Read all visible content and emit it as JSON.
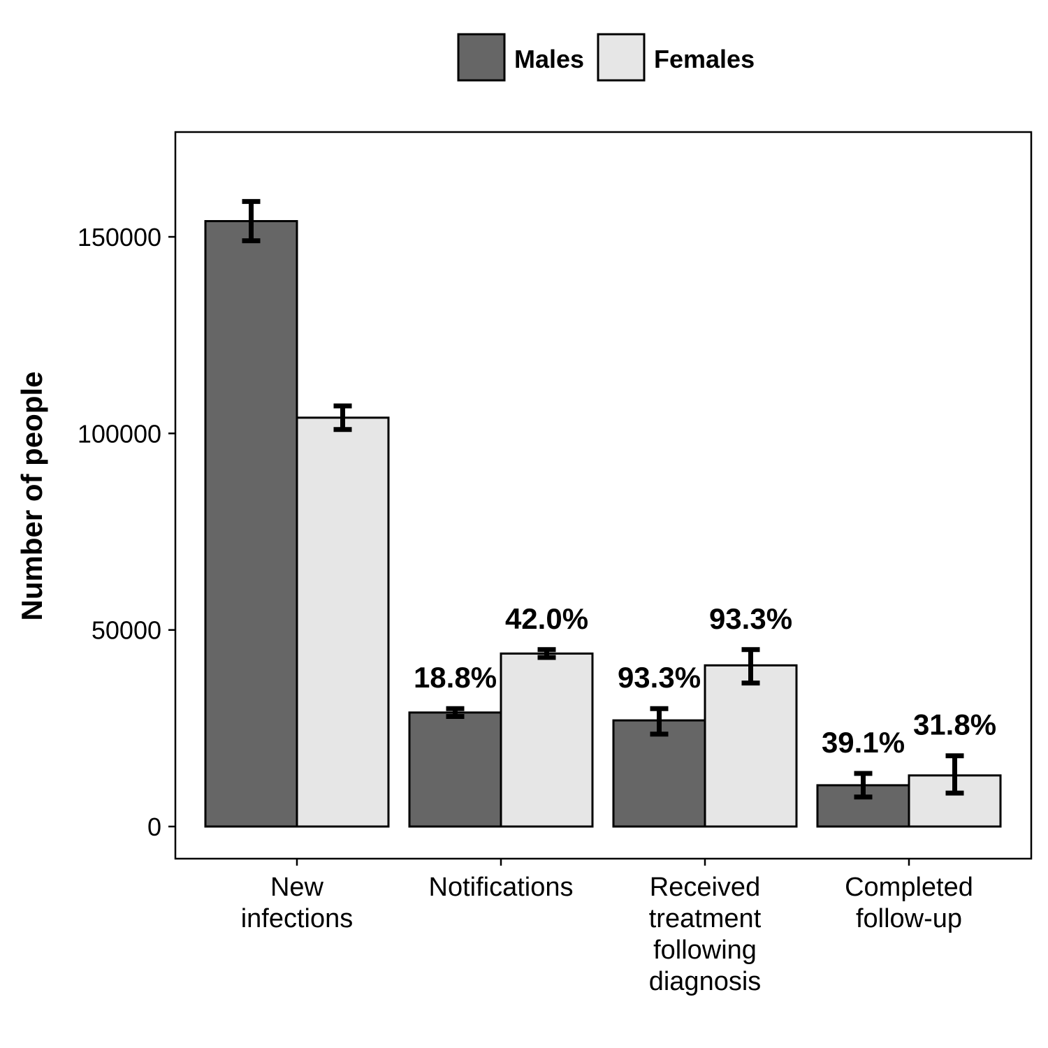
{
  "chart_data": {
    "type": "bar",
    "categories": [
      [
        "New",
        "infections"
      ],
      [
        "Notifications"
      ],
      [
        "Received",
        "treatment",
        "following",
        "diagnosis"
      ],
      [
        "Completed",
        "follow-up"
      ]
    ],
    "ylabel": "Number of people",
    "xlabel": "",
    "ylim": [
      -8000,
      176000
    ],
    "yticks": [
      0,
      50000,
      100000,
      150000
    ],
    "ytick_labels": [
      "0",
      "50000",
      "100000",
      "150000"
    ],
    "grid": false,
    "legend_position": "top",
    "series": [
      {
        "name": "Males",
        "color": "#666666",
        "values": [
          154000,
          29000,
          27000,
          10500
        ],
        "error_low": [
          149000,
          28000,
          23500,
          7500
        ],
        "error_high": [
          159000,
          30000,
          30000,
          13500
        ],
        "labels": [
          "",
          "18.8%",
          "93.3%",
          "39.1%"
        ]
      },
      {
        "name": "Females",
        "color": "#e6e6e6",
        "values": [
          104000,
          44000,
          41000,
          13000
        ],
        "error_low": [
          101000,
          43000,
          36500,
          8500
        ],
        "error_high": [
          107000,
          45000,
          45000,
          18000
        ],
        "labels": [
          "",
          "42.0%",
          "93.3%",
          "31.8%"
        ]
      }
    ]
  }
}
